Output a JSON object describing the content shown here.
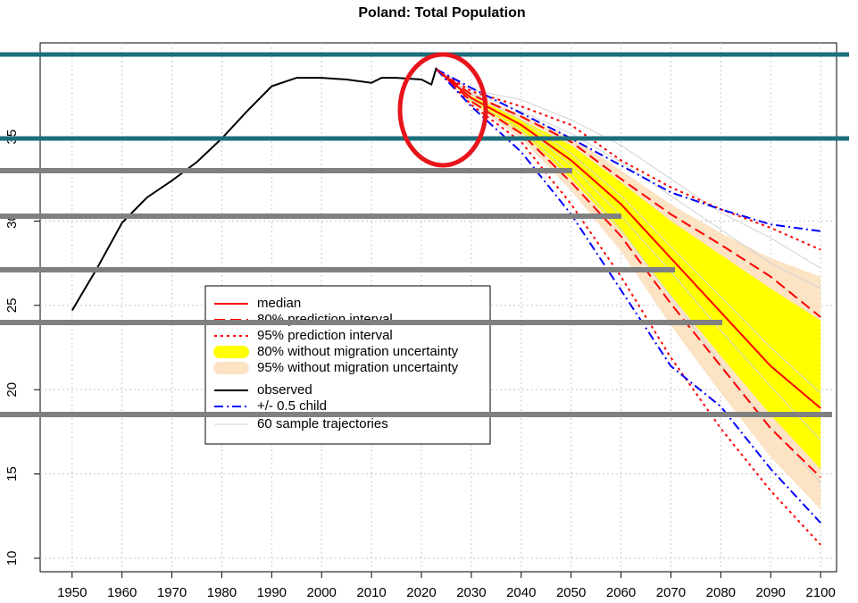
{
  "chart_data": {
    "type": "line",
    "title": "Poland: Total Population",
    "xlim": [
      1943.6,
      2103.2
    ],
    "ylim": [
      9.2,
      40.57
    ],
    "xticks": [
      1950,
      1960,
      1970,
      1980,
      1990,
      2000,
      2010,
      2020,
      2030,
      2040,
      2050,
      2060,
      2070,
      2080,
      2090,
      2100
    ],
    "yticks": [
      10,
      15,
      20,
      25,
      30,
      35
    ],
    "grid": true,
    "series": [
      {
        "name": "median",
        "kind": "line",
        "color": "#ff0000",
        "dash": "solid",
        "x": [
          2023,
          2030,
          2040,
          2050,
          2060,
          2070,
          2080,
          2090,
          2100
        ],
        "values": [
          39.0,
          37.3,
          35.7,
          33.6,
          31.0,
          27.8,
          24.6,
          21.4,
          18.9
        ]
      },
      {
        "name": "80% prediction interval",
        "kind": "pair",
        "color": "#ff0000",
        "dash": "dashed",
        "x": [
          2023,
          2030,
          2040,
          2050,
          2060,
          2070,
          2080,
          2090,
          2100
        ],
        "upper": [
          39.0,
          37.5,
          36.2,
          34.7,
          32.5,
          30.4,
          28.6,
          26.7,
          24.3
        ],
        "lower": [
          39.0,
          37.1,
          35.2,
          32.3,
          29.1,
          25.1,
          21.4,
          17.7,
          14.8
        ]
      },
      {
        "name": "95% prediction interval",
        "kind": "pair",
        "color": "#ff0000",
        "dash": "dotted",
        "x": [
          2023,
          2030,
          2040,
          2050,
          2060,
          2070,
          2080,
          2090,
          2100
        ],
        "upper": [
          39.0,
          37.7,
          36.8,
          35.7,
          33.6,
          32.0,
          30.7,
          29.6,
          28.3
        ],
        "lower": [
          39.0,
          36.9,
          34.7,
          31.0,
          26.7,
          21.9,
          17.7,
          14.0,
          10.8
        ]
      },
      {
        "name": "80% without migration uncertainty",
        "kind": "band",
        "color": "#ffff00",
        "x": [
          2023,
          2030,
          2040,
          2050,
          2060,
          2070,
          2080,
          2090,
          2100
        ],
        "upper": [
          39.0,
          37.4,
          36.0,
          34.5,
          32.3,
          30.0,
          28.0,
          26.0,
          24.1
        ],
        "lower": [
          39.0,
          37.1,
          35.3,
          32.5,
          29.4,
          25.6,
          22.0,
          18.5,
          15.3
        ]
      },
      {
        "name": "95% without migration uncertainty",
        "kind": "band",
        "color": "#fbe3c4",
        "x": [
          2023,
          2030,
          2040,
          2050,
          2060,
          2070,
          2080,
          2090,
          2100
        ],
        "upper": [
          39.0,
          37.6,
          36.3,
          35.0,
          33.0,
          31.0,
          29.3,
          27.8,
          26.7
        ],
        "lower": [
          39.0,
          37.0,
          34.9,
          31.8,
          28.2,
          23.8,
          19.8,
          16.0,
          12.9
        ]
      },
      {
        "name": "observed",
        "kind": "line",
        "color": "#000000",
        "dash": "solid",
        "x": [
          1950,
          1955,
          1960,
          1965,
          1970,
          1975,
          1980,
          1985,
          1990,
          1995,
          2000,
          2005,
          2010,
          2012,
          2015,
          2020,
          2022,
          2023
        ],
        "values": [
          24.7,
          27.2,
          29.9,
          31.4,
          32.4,
          33.5,
          34.9,
          36.5,
          38.0,
          38.5,
          38.5,
          38.4,
          38.2,
          38.5,
          38.5,
          38.4,
          38.1,
          39.1
        ]
      },
      {
        "name": "+/- 0.5 child",
        "kind": "pair",
        "color": "#0000ff",
        "dash": "dotdash",
        "x": [
          2023,
          2030,
          2040,
          2050,
          2060,
          2070,
          2080,
          2090,
          2100
        ],
        "upper": [
          39.0,
          37.9,
          36.4,
          34.9,
          33.3,
          31.7,
          30.7,
          29.8,
          29.4
        ],
        "lower": [
          39.0,
          36.8,
          34.1,
          30.4,
          25.9,
          21.4,
          19.0,
          15.3,
          12.1
        ]
      },
      {
        "name": "60 sample trajectories",
        "kind": "trajectories",
        "color": "#d3d3d3",
        "dash": "solid",
        "x": [
          2023,
          2030,
          2040,
          2050,
          2060,
          2070,
          2080,
          2090,
          2100
        ],
        "trajectories": [
          [
            39.0,
            37.6,
            36.5,
            35.2,
            33.5,
            31.5,
            29.5,
            27.5,
            26.0
          ],
          [
            39.0,
            37.2,
            35.4,
            32.8,
            29.5,
            25.5,
            21.5,
            17.8,
            14.5
          ],
          [
            39.0,
            37.5,
            36.0,
            34.0,
            31.5,
            28.5,
            25.5,
            22.5,
            19.8
          ],
          [
            39.0,
            37.8,
            37.2,
            36.0,
            34.5,
            32.5,
            30.5,
            29.0,
            27.2
          ],
          [
            39.0,
            37.3,
            35.7,
            33.3,
            30.3,
            27.0,
            23.5,
            20.2,
            17.0
          ]
        ]
      }
    ]
  }
}
